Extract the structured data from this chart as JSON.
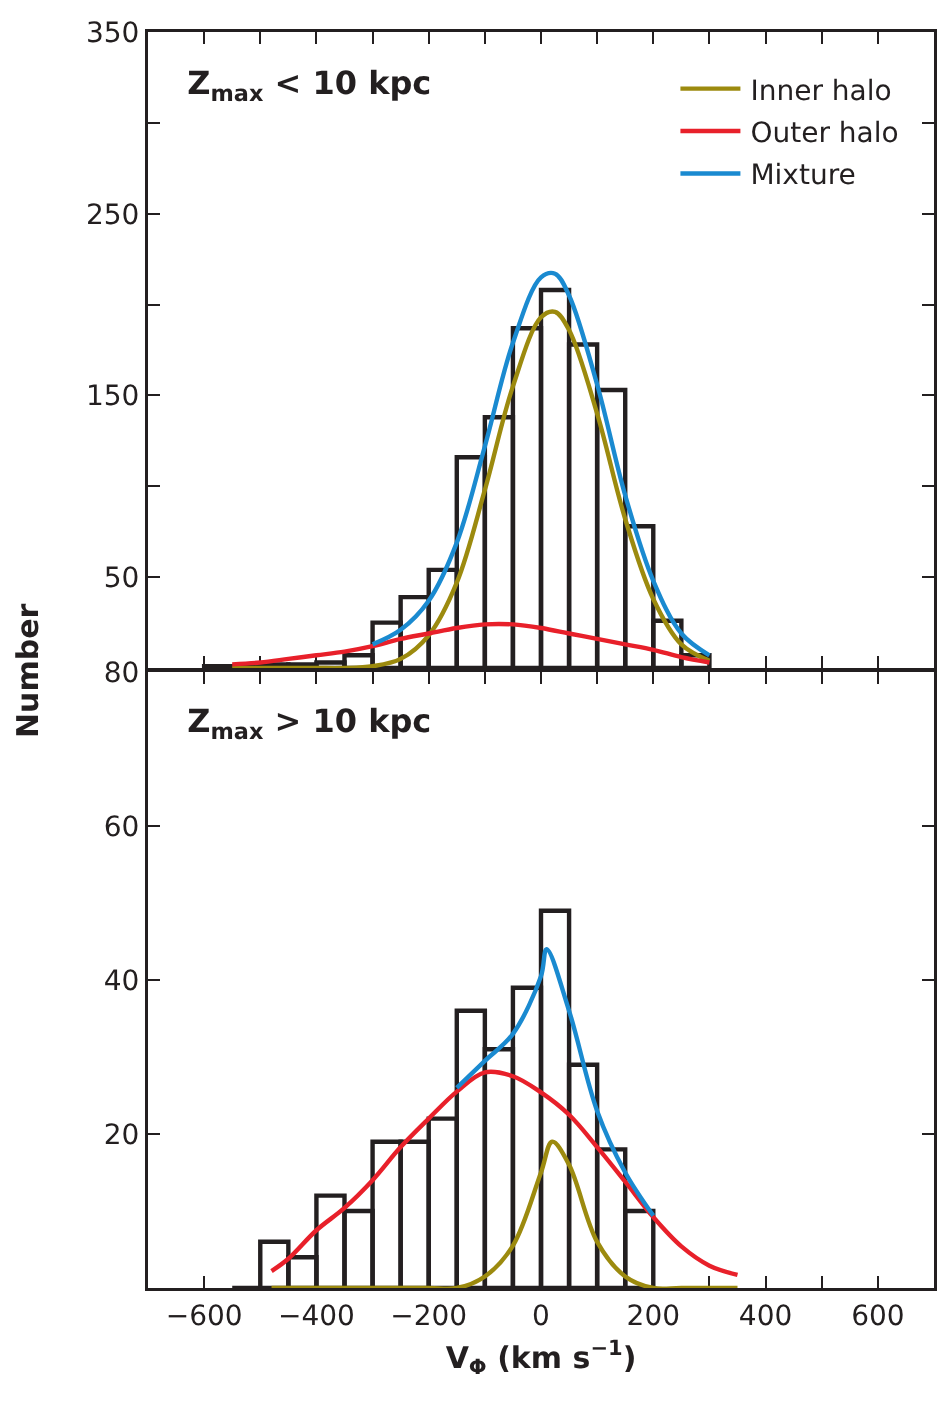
{
  "chart_data": [
    {
      "type": "histogram",
      "title": "Z$_{max}$ < 10 kpc",
      "ylabel": "Number",
      "bins": [
        -600,
        -550,
        -500,
        -450,
        -400,
        -350,
        -300,
        -250,
        -200,
        -150,
        -100,
        -50,
        0,
        50,
        100,
        150,
        200,
        250,
        300
      ],
      "values": [
        1,
        1,
        2,
        2,
        3,
        7,
        25,
        39,
        54,
        116,
        138,
        187,
        208,
        178,
        153,
        78,
        26,
        7
      ],
      "color": "#231f20",
      "series": [
        {
          "type": "line",
          "name": "Inner halo",
          "color": "#9c8a0e",
          "x": [
            -550,
            -500,
            -450,
            -400,
            -350,
            -300,
            -250,
            -200,
            -150,
            -100,
            -50,
            0,
            25,
            50,
            100,
            150,
            200,
            250,
            300
          ],
          "values": [
            0,
            0,
            0,
            0,
            0,
            1,
            5,
            18,
            47,
            98,
            155,
            193,
            196,
            186,
            140,
            82,
            38,
            13,
            4
          ]
        },
        {
          "type": "line",
          "name": "Outer halo",
          "color": "#e8202a",
          "x": [
            -550,
            -500,
            -450,
            -400,
            -350,
            -300,
            -250,
            -200,
            -150,
            -100,
            -50,
            0,
            50,
            100,
            150,
            200,
            250,
            300
          ],
          "values": [
            2,
            3,
            5,
            7,
            9,
            12,
            16,
            19,
            22,
            24,
            24,
            22,
            19,
            16,
            13,
            10,
            6,
            3
          ]
        },
        {
          "type": "line",
          "name": "Mixture",
          "color": "#1a8ad0",
          "x": [
            -300,
            -250,
            -200,
            -150,
            -100,
            -50,
            0,
            25,
            50,
            100,
            150,
            200,
            250,
            300
          ],
          "values": [
            13,
            21,
            37,
            69,
            122,
            179,
            215,
            217,
            205,
            156,
            95,
            48,
            19,
            7
          ]
        }
      ],
      "xlim": [
        -700,
        700
      ],
      "xticks": [
        {
          "value": -600,
          "label": null
        },
        {
          "value": -500,
          "label": null
        },
        {
          "value": -400,
          "label": null
        },
        {
          "value": -300,
          "label": null
        },
        {
          "value": -200,
          "label": null
        },
        {
          "value": -100,
          "label": null
        },
        {
          "value": 0,
          "label": null
        },
        {
          "value": 100,
          "label": null
        },
        {
          "value": 200,
          "label": null
        },
        {
          "value": 300,
          "label": null
        },
        {
          "value": 400,
          "label": null
        },
        {
          "value": 500,
          "label": null
        },
        {
          "value": 600,
          "label": null
        }
      ],
      "ylim": [
        0,
        350
      ],
      "yticks": [
        50,
        {
          "value": 100,
          "label": null
        },
        150,
        {
          "value": 200,
          "label": null
        },
        250,
        {
          "value": 300,
          "label": null
        },
        350
      ],
      "tick_labels": "y",
      "legend": "top right",
      "grid": false
    },
    {
      "type": "histogram",
      "title": "Z$_{max}$ > 10 kpc",
      "xlabel": "V$_{Φ}$ (km s$^{−1}$)",
      "bins": [
        -550,
        -500,
        -450,
        -400,
        -350,
        -300,
        -250,
        -200,
        -150,
        -100,
        -50,
        0,
        50,
        100,
        150,
        200
      ],
      "values": [
        0,
        6,
        4,
        12,
        10,
        19,
        19,
        22,
        36,
        31,
        39,
        49,
        29,
        18,
        10
      ],
      "color": "#231f20",
      "series": [
        {
          "type": "line",
          "color": "#9c8a0e",
          "x": [
            -480,
            -400,
            -300,
            -200,
            -150,
            -100,
            -50,
            0,
            20,
            50,
            100,
            150,
            200,
            250,
            350
          ],
          "values": [
            0,
            0,
            0,
            0,
            0,
            1.5,
            5.5,
            15,
            19,
            16,
            6,
            1.5,
            0,
            0,
            0
          ]
        },
        {
          "type": "line",
          "color": "#e8202a",
          "x": [
            -480,
            -450,
            -400,
            -350,
            -300,
            -250,
            -200,
            -150,
            -100,
            -50,
            0,
            50,
            100,
            150,
            200,
            250,
            300,
            350
          ],
          "values": [
            2.2,
            3.8,
            7.5,
            10.4,
            14,
            18.3,
            22,
            25.5,
            28,
            27.5,
            25.4,
            22.5,
            18.3,
            13.8,
            9.2,
            5.4,
            2.9,
            1.7
          ]
        },
        {
          "type": "line",
          "color": "#1a8ad0",
          "x": [
            -150,
            -100,
            -50,
            0,
            10,
            50,
            100,
            150,
            200
          ],
          "values": [
            26,
            29.5,
            33,
            40.5,
            44,
            36,
            23,
            15,
            9.4
          ]
        }
      ],
      "xlim": [
        -700,
        700
      ],
      "xticks": [
        -600,
        {
          "value": -500,
          "label": null
        },
        -400,
        {
          "value": -300,
          "label": null
        },
        -200,
        {
          "value": -100,
          "label": null
        },
        0,
        {
          "value": 100,
          "label": null
        },
        200,
        {
          "value": 300,
          "label": null
        },
        400,
        {
          "value": 500,
          "label": null
        },
        600
      ],
      "ylim": [
        0,
        80
      ],
      "yticks": [
        20,
        40,
        60,
        80
      ],
      "grid": false
    }
  ]
}
